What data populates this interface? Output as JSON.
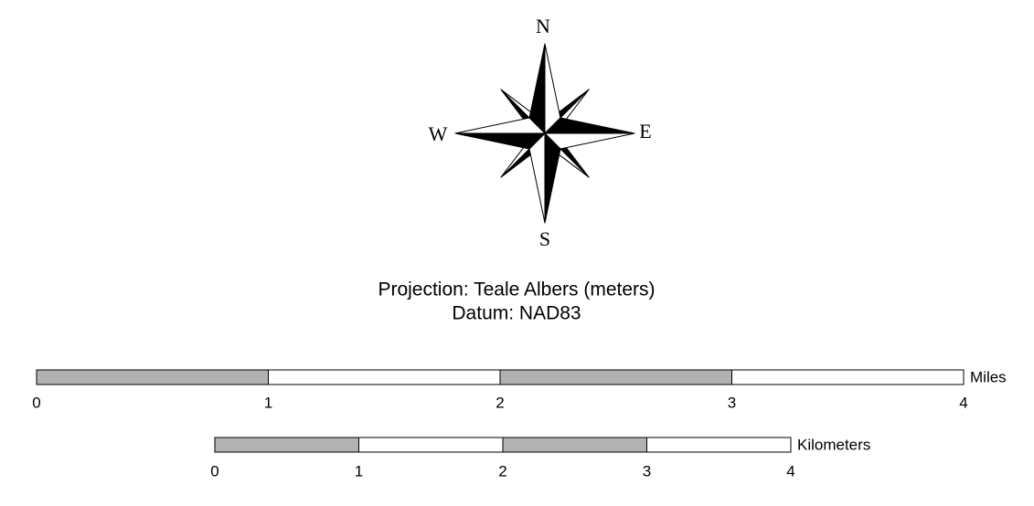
{
  "compass": {
    "north": "N",
    "east": "E",
    "south": "S",
    "west": "W"
  },
  "projection": {
    "line1": "Projection: Teale Albers (meters)",
    "line2": "Datum: NAD83"
  },
  "scale_bars": [
    {
      "unit": "Miles",
      "ticks": [
        0,
        1,
        2,
        3,
        4
      ]
    },
    {
      "unit": "Kilometers",
      "ticks": [
        0,
        1,
        2,
        3,
        4
      ]
    }
  ]
}
